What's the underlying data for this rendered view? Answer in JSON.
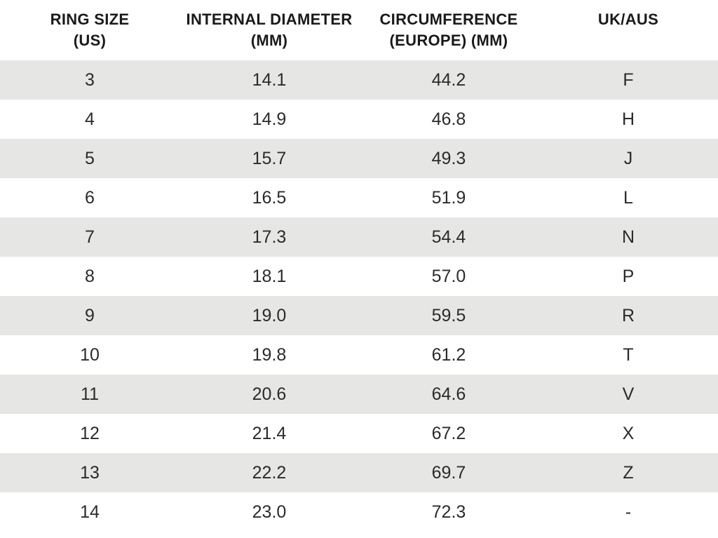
{
  "colors": {
    "page_bg": "#ffffff",
    "stripe_row_bg": "#e6e6e5",
    "plain_row_bg": "#ffffff",
    "header_text": "#1a1a1a",
    "cell_text": "#2b2b2b"
  },
  "table": {
    "headers": [
      {
        "line1": "RING SIZE",
        "line2": "(US)"
      },
      {
        "line1": "INTERNAL DIAMETER",
        "line2": "(MM)"
      },
      {
        "line1": "CIRCUMFERENCE",
        "line2": "(EUROPE) (MM)"
      },
      {
        "line1": "UK/AUS",
        "line2": ""
      }
    ],
    "rows": [
      [
        "3",
        "14.1",
        "44.2",
        "F"
      ],
      [
        "4",
        "14.9",
        "46.8",
        "H"
      ],
      [
        "5",
        "15.7",
        "49.3",
        "J"
      ],
      [
        "6",
        "16.5",
        "51.9",
        "L"
      ],
      [
        "7",
        "17.3",
        "54.4",
        "N"
      ],
      [
        "8",
        "18.1",
        "57.0",
        "P"
      ],
      [
        "9",
        "19.0",
        "59.5",
        "R"
      ],
      [
        "10",
        "19.8",
        "61.2",
        "T"
      ],
      [
        "11",
        "20.6",
        "64.6",
        "V"
      ],
      [
        "12",
        "21.4",
        "67.2",
        "X"
      ],
      [
        "13",
        "22.2",
        "69.7",
        "Z"
      ],
      [
        "14",
        "23.0",
        "72.3",
        "-"
      ]
    ]
  },
  "chart_data": {
    "type": "table",
    "columns": [
      "RING SIZE (US)",
      "INTERNAL DIAMETER (MM)",
      "CIRCUMFERENCE (EUROPE) (MM)",
      "UK/AUS"
    ],
    "rows": [
      [
        3,
        14.1,
        44.2,
        "F"
      ],
      [
        4,
        14.9,
        46.8,
        "H"
      ],
      [
        5,
        15.7,
        49.3,
        "J"
      ],
      [
        6,
        16.5,
        51.9,
        "L"
      ],
      [
        7,
        17.3,
        54.4,
        "N"
      ],
      [
        8,
        18.1,
        57.0,
        "P"
      ],
      [
        9,
        19.0,
        59.5,
        "R"
      ],
      [
        10,
        19.8,
        61.2,
        "T"
      ],
      [
        11,
        20.6,
        64.6,
        "V"
      ],
      [
        12,
        21.4,
        67.2,
        "X"
      ],
      [
        13,
        22.2,
        69.7,
        "Z"
      ],
      [
        14,
        23.0,
        72.3,
        "-"
      ]
    ],
    "layout": {
      "columns_equal_width": true,
      "text_align": "center",
      "striping": "odd rows shaded, starting with first data row"
    }
  }
}
